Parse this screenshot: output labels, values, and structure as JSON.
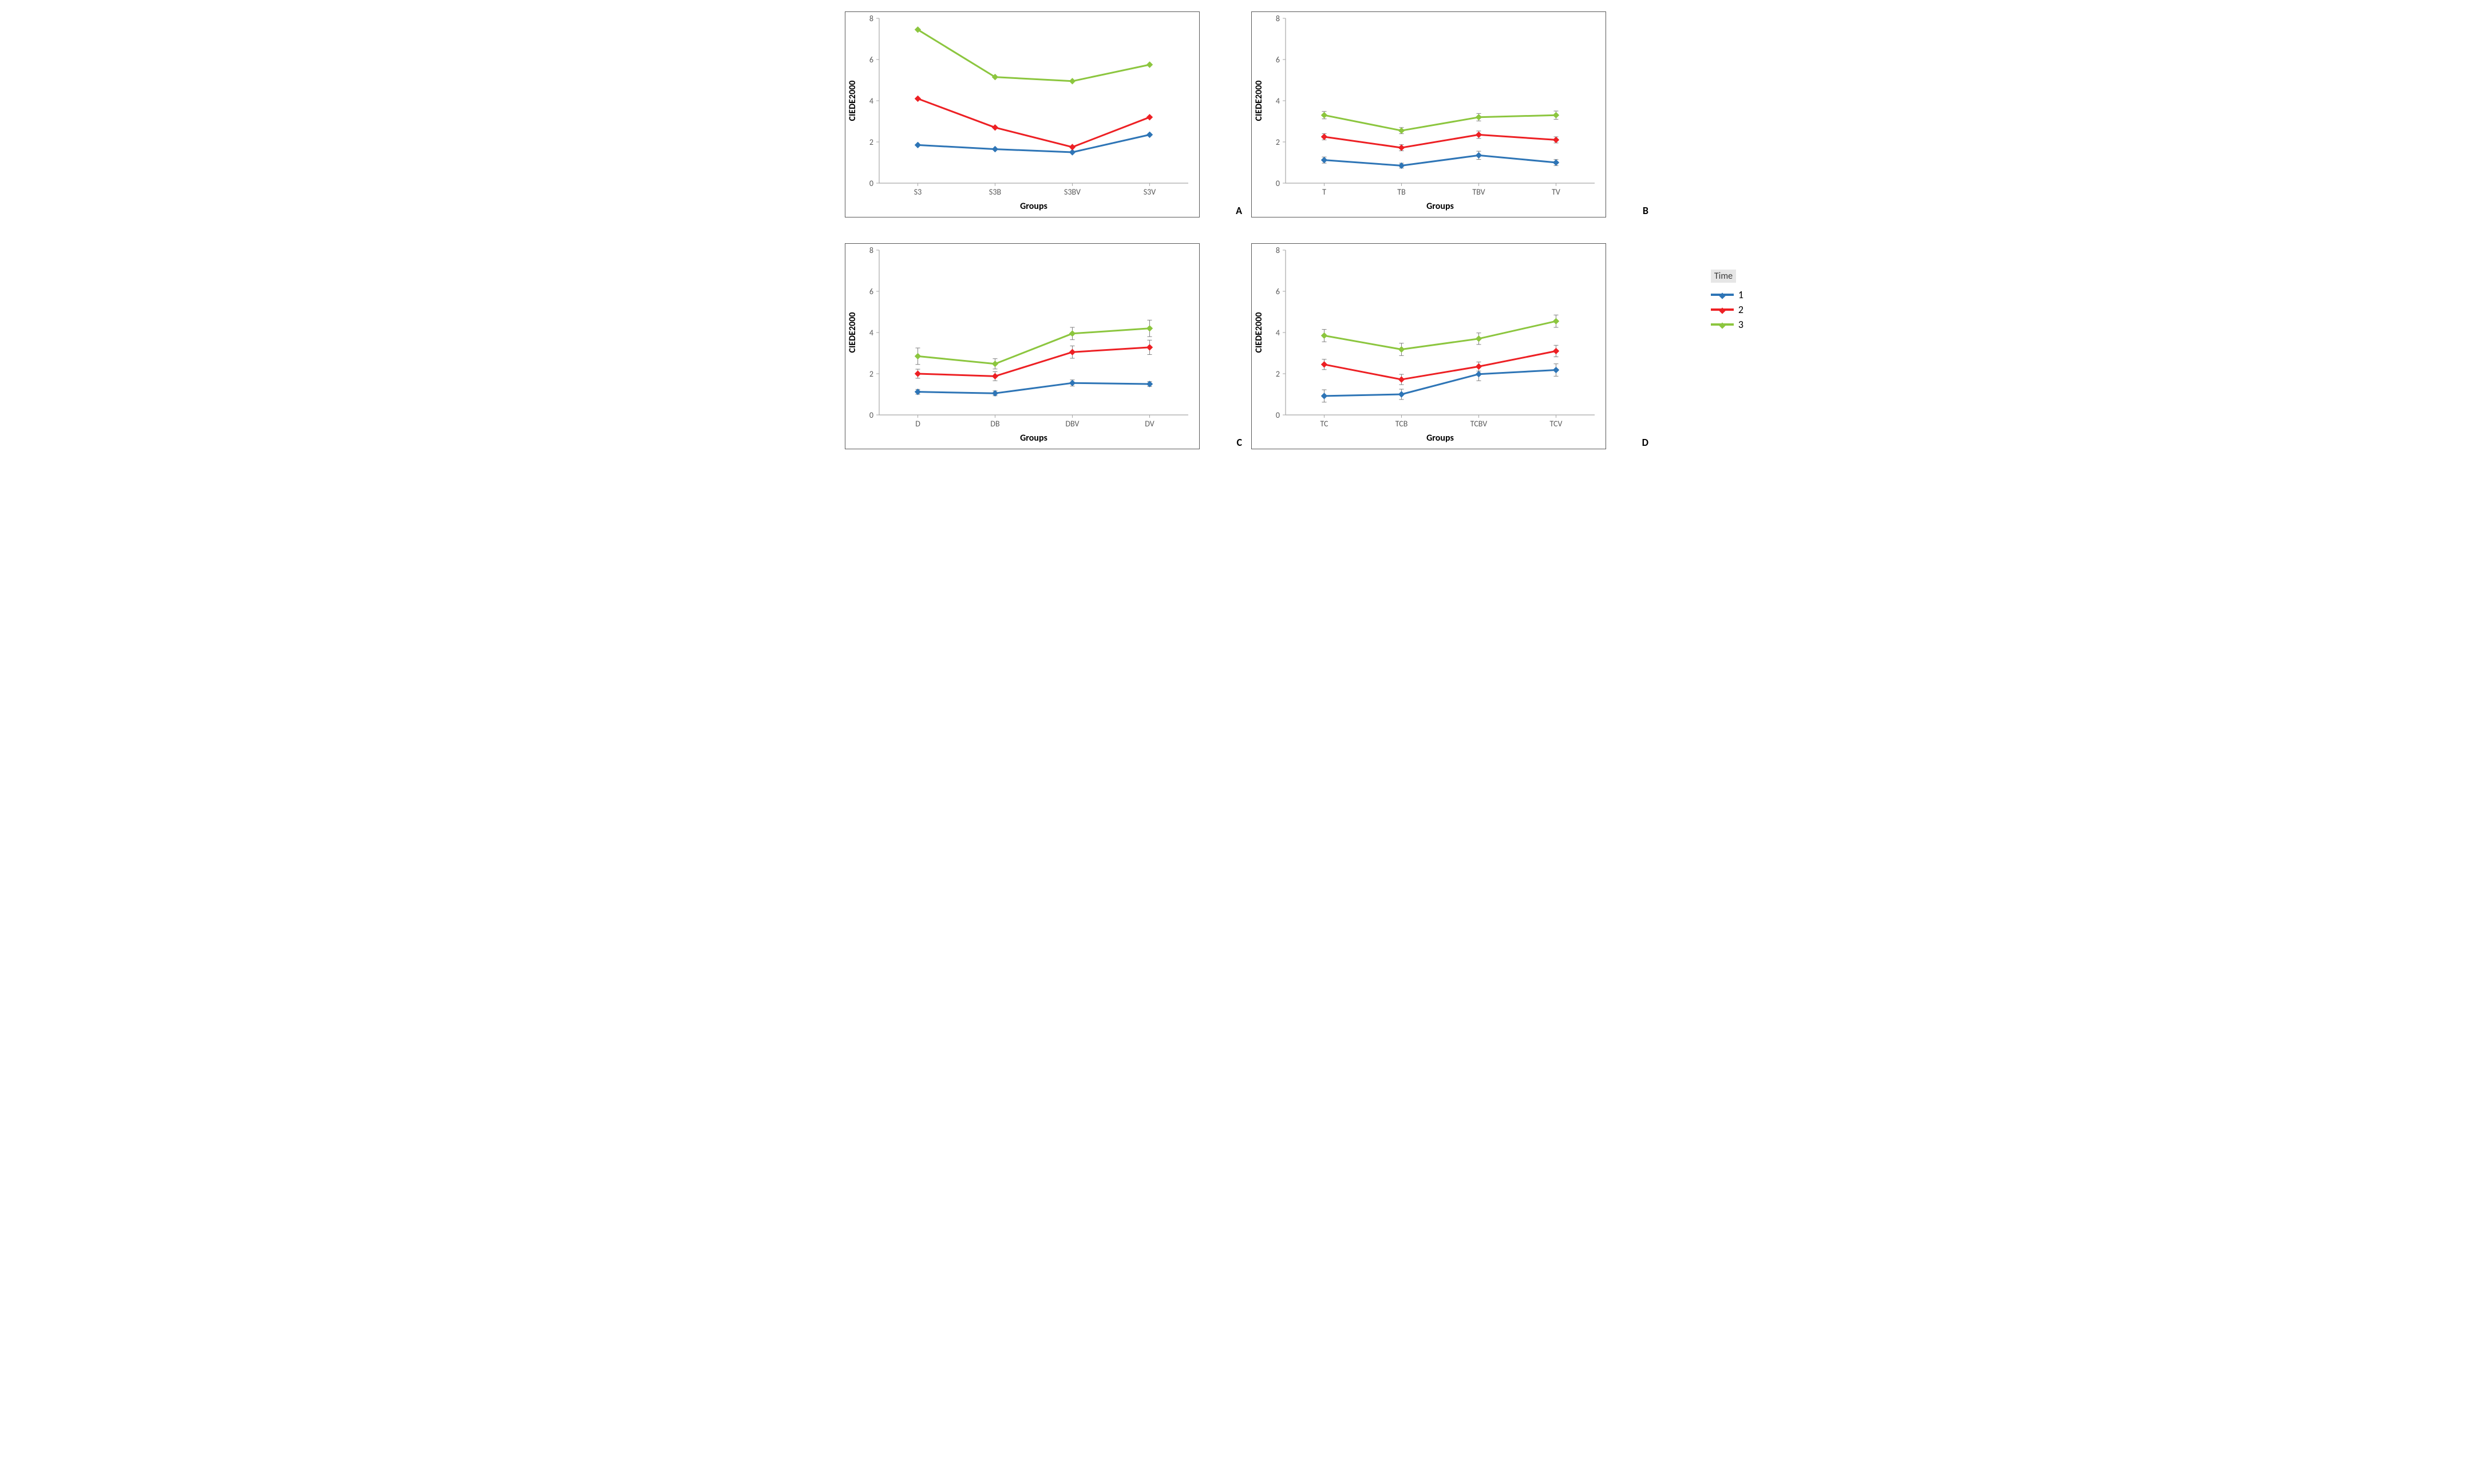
{
  "global": {
    "background_color": "#ffffff",
    "font_family": "Calibri, Arial, sans-serif",
    "axis_color": "#a6a6a6",
    "axis_line_width": 1.2,
    "tick_label_color": "#595959",
    "tick_fontsize": 14,
    "axis_label_color": "#000000",
    "axis_label_fontsize": 16,
    "axis_label_fontweight": "700",
    "panel_border_color": "#595959",
    "panel_border_width": 1,
    "panel_label_fontsize": 18,
    "panel_label_fontweight": "700",
    "grid": false,
    "line_width": 3,
    "marker_size": 5,
    "marker_shape": "diamond",
    "error_bar_color": "#7f7f7f",
    "error_bar_width": 1,
    "error_cap_width": 8
  },
  "series_style": {
    "1": {
      "color": "#2e75b6",
      "label": "1"
    },
    "2": {
      "color": "#ed2024",
      "label": "2"
    },
    "3": {
      "color": "#8cc63f",
      "label": "3"
    }
  },
  "legend": {
    "title": "Time",
    "items": [
      "1",
      "2",
      "3"
    ]
  },
  "axes_common": {
    "ylabel": "CIEDE2000",
    "xlabel": "Groups",
    "ylim": [
      0,
      8
    ],
    "yticks": [
      0,
      2,
      4,
      6,
      8
    ]
  },
  "panels": [
    {
      "letter": "A",
      "categories": [
        "S3",
        "S3B",
        "S3BV",
        "S3V"
      ],
      "show_error_bars": false,
      "series": {
        "1": {
          "y": [
            1.85,
            1.65,
            1.5,
            2.35
          ],
          "err": [
            0.0,
            0.0,
            0.0,
            0.0
          ]
        },
        "2": {
          "y": [
            4.1,
            2.7,
            1.75,
            3.2
          ],
          "err": [
            0.0,
            0.0,
            0.0,
            0.0
          ]
        },
        "3": {
          "y": [
            7.45,
            5.15,
            4.95,
            5.75
          ],
          "err": [
            0.0,
            0.0,
            0.0,
            0.0
          ]
        }
      }
    },
    {
      "letter": "B",
      "categories": [
        "T",
        "TB",
        "TBV",
        "TV"
      ],
      "show_error_bars": true,
      "series": {
        "1": {
          "y": [
            1.12,
            0.85,
            1.35,
            1.0
          ],
          "err": [
            0.15,
            0.12,
            0.2,
            0.15
          ]
        },
        "2": {
          "y": [
            2.25,
            1.72,
            2.35,
            2.1
          ],
          "err": [
            0.15,
            0.15,
            0.18,
            0.15
          ]
        },
        "3": {
          "y": [
            3.3,
            2.55,
            3.2,
            3.3
          ],
          "err": [
            0.18,
            0.15,
            0.18,
            0.2
          ]
        }
      }
    },
    {
      "letter": "C",
      "categories": [
        "D",
        "DB",
        "DBV",
        "DV"
      ],
      "show_error_bars": true,
      "series": {
        "1": {
          "y": [
            1.12,
            1.05,
            1.55,
            1.5
          ],
          "err": [
            0.12,
            0.12,
            0.15,
            0.12
          ]
        },
        "2": {
          "y": [
            2.0,
            1.88,
            3.05,
            3.28
          ],
          "err": [
            0.22,
            0.22,
            0.3,
            0.35
          ]
        },
        "3": {
          "y": [
            2.85,
            2.48,
            3.95,
            4.2
          ],
          "err": [
            0.4,
            0.25,
            0.3,
            0.4
          ]
        }
      }
    },
    {
      "letter": "D",
      "categories": [
        "TC",
        "TCB",
        "TCBV",
        "TCV"
      ],
      "show_error_bars": true,
      "series": {
        "1": {
          "y": [
            0.92,
            1.0,
            1.98,
            2.18
          ],
          "err": [
            0.3,
            0.25,
            0.32,
            0.3
          ]
        },
        "2": {
          "y": [
            2.45,
            1.72,
            2.35,
            3.1
          ],
          "err": [
            0.25,
            0.25,
            0.22,
            0.28
          ]
        },
        "3": {
          "y": [
            3.85,
            3.18,
            3.7,
            4.55
          ],
          "err": [
            0.3,
            0.3,
            0.28,
            0.3
          ]
        }
      }
    }
  ]
}
